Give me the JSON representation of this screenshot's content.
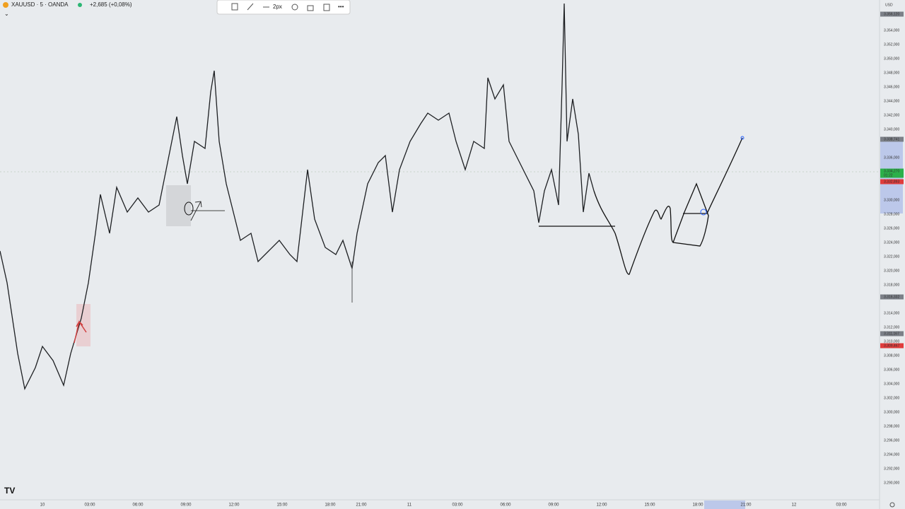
{
  "header": {
    "symbol": "XAUUSD · 5 · OANDA",
    "change": "+2,685 (+0,08%)",
    "currency": "USD"
  },
  "toolbar": {
    "width_label": "2px"
  },
  "price_axis": {
    "labels": [
      "3.354,000",
      "3.352,000",
      "3.350,000",
      "3.348,000",
      "3.346,000",
      "3.344,000",
      "3.342,000",
      "3.340,000",
      "3.336,000",
      "3.330,000",
      "3.328,000",
      "3.326,000",
      "3.324,000",
      "3.322,000",
      "3.320,000",
      "3.318,000",
      "3.314,000",
      "3.312,000",
      "3.310,000",
      "3.308,000",
      "3.306,000",
      "3.304,000",
      "3.302,000",
      "3.300,000",
      "3.298,000",
      "3.296,000",
      "3.294,000",
      "3.292,000",
      "3.290,000"
    ],
    "badges": [
      {
        "text": "3.356,120",
        "kind": "gray"
      },
      {
        "text": "3.338,741",
        "kind": "gray"
      },
      {
        "text": "3.334,270",
        "kind": "green"
      },
      {
        "text": "01:22",
        "kind": "green"
      },
      {
        "text": "3.332,893",
        "kind": "red"
      },
      {
        "text": "3.316,332",
        "kind": "gray"
      },
      {
        "text": "3.311,167",
        "kind": "gray"
      },
      {
        "text": "3.309,467",
        "kind": "red"
      }
    ]
  },
  "time_axis": {
    "labels": [
      "10",
      "03:00",
      "06:00",
      "09:00",
      "12:00",
      "15:00",
      "18:00",
      "21:00",
      "11",
      "03:00",
      "06:00",
      "09:00",
      "12:00",
      "15:00",
      "18:00",
      "21:00",
      "12",
      "03:00"
    ]
  }
}
